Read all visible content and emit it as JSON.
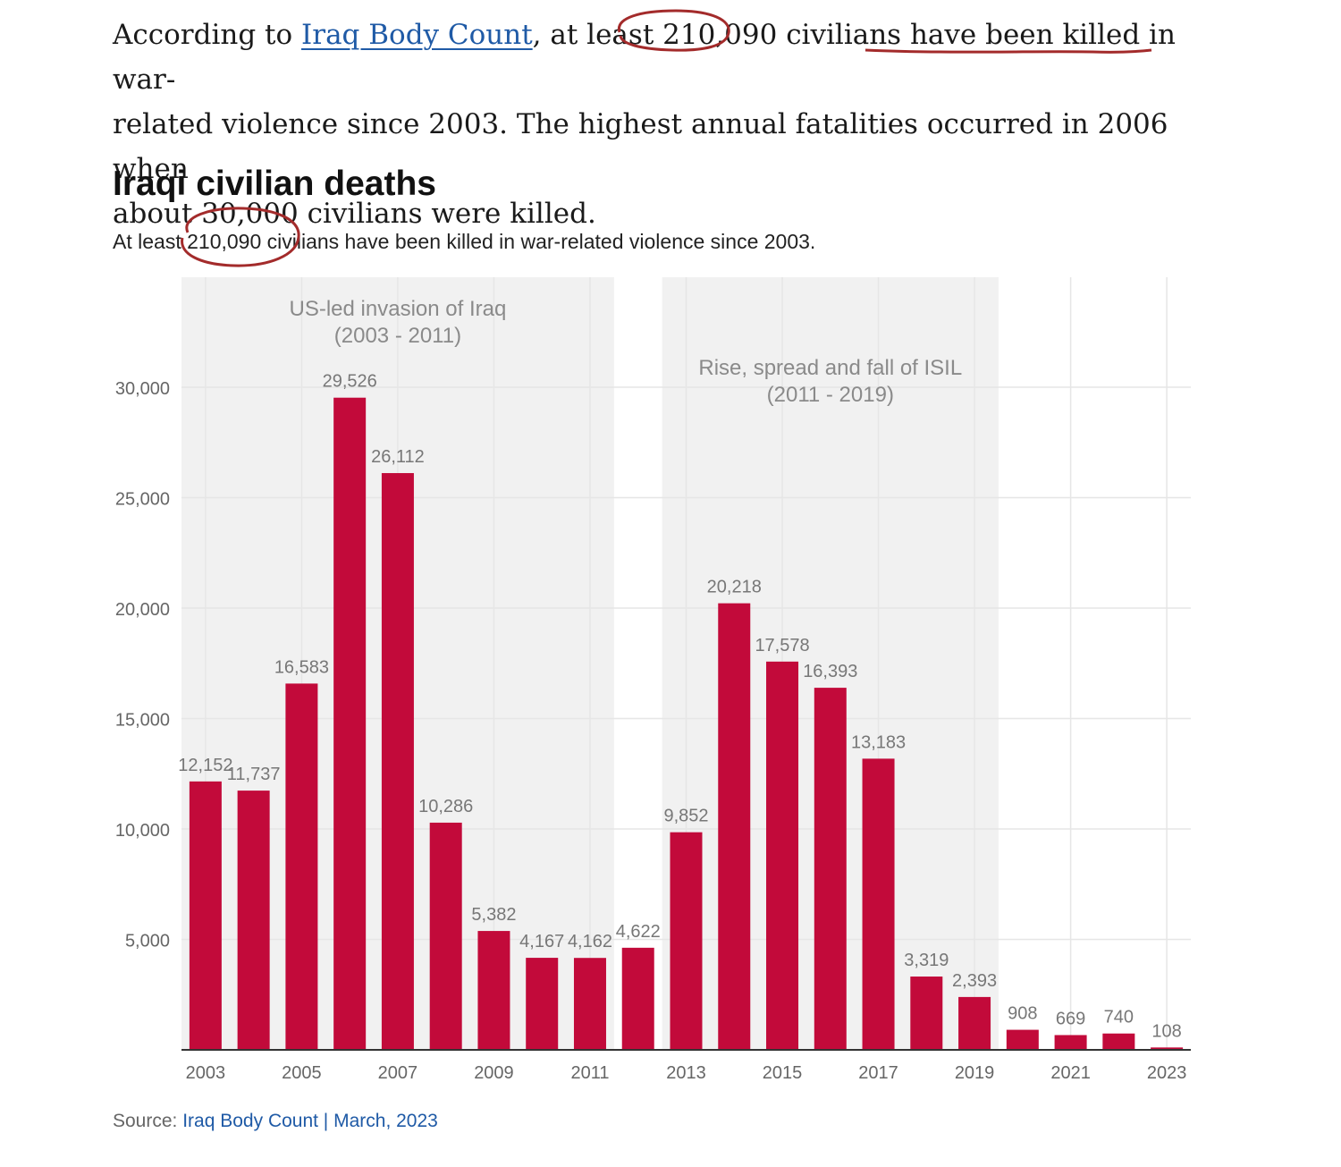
{
  "article": {
    "intro": "According to ",
    "link_text": "Iraq Body Count",
    "mid": ", at least ",
    "highlight_number": "210,090",
    "rest_line1": " civilians have been killed in war-",
    "line2": "related violence since 2003. The highest annual fatalities occurred in 2006 when",
    "line3": "about 30,000 civilians were killed."
  },
  "chart_title": "Iraqi civilian deaths",
  "chart_subtitle": {
    "pre": "At least ",
    "number": "210,090",
    "post": " civilians have been killed in war-related violence since 2003."
  },
  "source": {
    "label": "Source: ",
    "text": "Iraq Body Count | March, 2023"
  },
  "colors": {
    "bar": "#c20a3a",
    "shade": "#f1f1f1",
    "annotation_ink": "#a32b2b",
    "grid": "#e6e6e6",
    "tick_text": "#666666",
    "label_text": "#777777",
    "shade_text": "#8a8a8a"
  },
  "chart_data": {
    "type": "bar",
    "title": "Iraqi civilian deaths",
    "categories": [
      "2003",
      "2004",
      "2005",
      "2006",
      "2007",
      "2008",
      "2009",
      "2010",
      "2011",
      "2012",
      "2013",
      "2014",
      "2015",
      "2016",
      "2017",
      "2018",
      "2019",
      "2020",
      "2021",
      "2022",
      "2023"
    ],
    "values": [
      12152,
      11737,
      16583,
      29526,
      26112,
      10286,
      5382,
      4167,
      4162,
      4622,
      9852,
      20218,
      17578,
      16393,
      13183,
      3319,
      2393,
      908,
      669,
      740,
      108
    ],
    "value_labels": [
      "12,152",
      "11,737",
      "16,583",
      "29,526",
      "26,112",
      "10,286",
      "5,382",
      "4,167",
      "4,162",
      "4,622",
      "9,852",
      "20,218",
      "17,578",
      "16,393",
      "13,183",
      "3,319",
      "2,393",
      "908",
      "669",
      "740",
      "108"
    ],
    "x_tick_labels": [
      "2003",
      "2005",
      "2007",
      "2009",
      "2011",
      "2013",
      "2015",
      "2017",
      "2019",
      "2021",
      "2023"
    ],
    "y_ticks": [
      5000,
      10000,
      15000,
      20000,
      25000,
      30000
    ],
    "y_tick_labels": [
      "5,000",
      "10,000",
      "15,000",
      "20,000",
      "25,000",
      "30,000"
    ],
    "ylim": [
      0,
      35000
    ],
    "grid": true,
    "shaded_periods": [
      {
        "from_index": 0,
        "to_index": 8,
        "label_line1": "US-led invasion of Iraq",
        "label_line2": "(2003 - 2011)"
      },
      {
        "from_index": 10,
        "to_index": 16,
        "label_line1": "Rise, spread and fall of ISIL",
        "label_line2": "(2011 - 2019)"
      }
    ]
  }
}
